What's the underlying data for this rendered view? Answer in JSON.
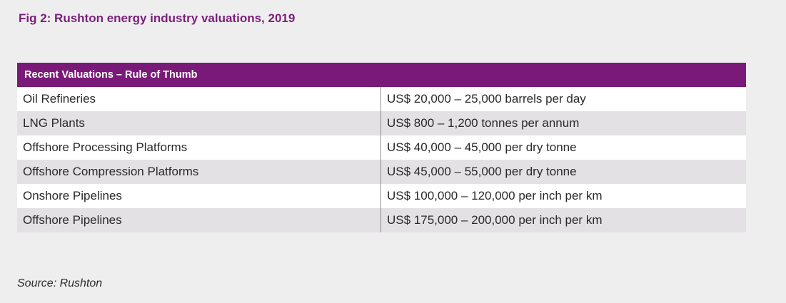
{
  "figure": {
    "title": "Fig 2: Rushton energy industry valuations, 2019",
    "source": "Source: Rushton"
  },
  "table": {
    "header": "Recent Valuations – Rule of Thumb",
    "rows": [
      {
        "asset": "Oil Refineries",
        "valuation": "US$ 20,000 – 25,000 barrels per day"
      },
      {
        "asset": "LNG Plants",
        "valuation": "US$ 800 – 1,200 tonnes per annum"
      },
      {
        "asset": "Offshore Processing Platforms",
        "valuation": "US$ 40,000 – 45,000 per dry tonne"
      },
      {
        "asset": "Offshore Compression Platforms",
        "valuation": "US$ 45,000 – 55,000 per dry tonne"
      },
      {
        "asset": "Onshore Pipelines",
        "valuation": "US$ 100,000 – 120,000 per inch per km"
      },
      {
        "asset": "Offshore Pipelines",
        "valuation": "US$ 175,000 – 200,000 per inch per km"
      }
    ]
  },
  "colors": {
    "accent": "#7a1a78",
    "title": "#7a1f7a",
    "background": "#efeeef",
    "row_alt": "#e3e1e3"
  }
}
